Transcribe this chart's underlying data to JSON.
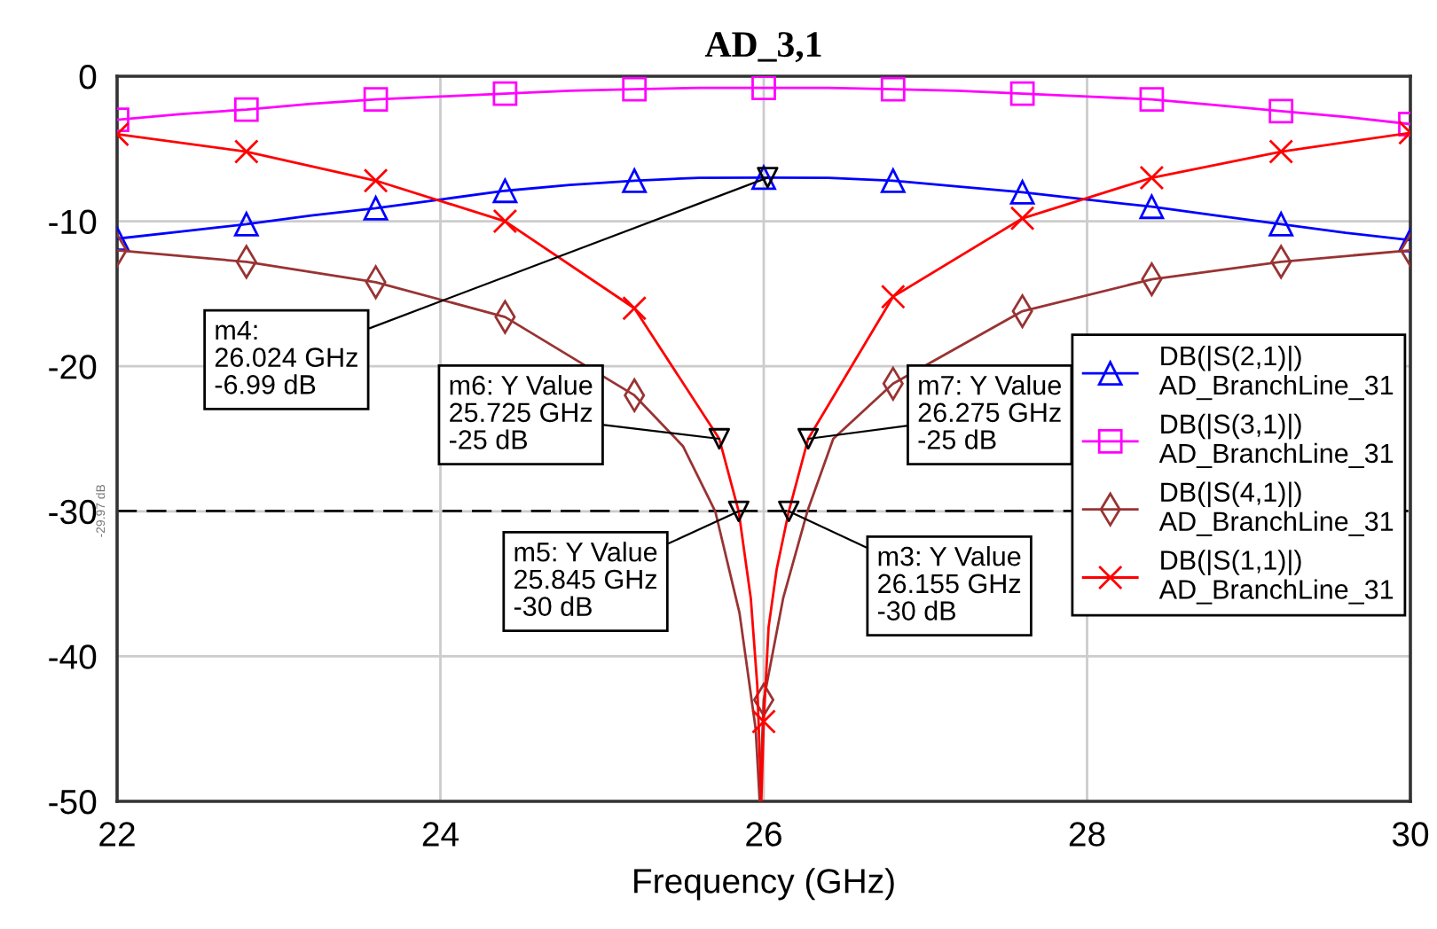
{
  "chart_data": {
    "type": "line",
    "title": "AD_3,1",
    "xlabel": "Frequency (GHz)",
    "xlim": [
      22,
      30
    ],
    "xticks": [
      22,
      24,
      26,
      28,
      30
    ],
    "ylim": [
      -50,
      0
    ],
    "yticks": [
      -50,
      -40,
      -30,
      -20,
      -10,
      0
    ],
    "grid": true,
    "legend": "right",
    "series": [
      {
        "name": "DB(|S(2,1)|)\nAD_BranchLine_31",
        "color": "#0000ff",
        "marker": "triangle",
        "x": [
          22,
          22.4,
          22.8,
          23.2,
          23.6,
          24.0,
          24.4,
          24.8,
          25.2,
          25.6,
          26.0,
          26.4,
          26.8,
          27.2,
          27.6,
          28.0,
          28.4,
          28.8,
          29.2,
          29.6,
          30
        ],
        "values": [
          -11.2,
          -10.7,
          -10.2,
          -9.6,
          -9.1,
          -8.5,
          -7.9,
          -7.5,
          -7.2,
          -7.0,
          -6.99,
          -7.0,
          -7.2,
          -7.6,
          -8.0,
          -8.5,
          -9.0,
          -9.6,
          -10.2,
          -10.8,
          -11.3
        ]
      },
      {
        "name": "DB(|S(3,1)|)\nAD_BranchLine_31",
        "color": "#ff00ff",
        "marker": "square",
        "x": [
          22,
          22.4,
          22.8,
          23.2,
          23.6,
          24.0,
          24.4,
          24.8,
          25.2,
          25.6,
          26.0,
          26.4,
          26.8,
          27.2,
          27.6,
          28.0,
          28.4,
          28.8,
          29.2,
          29.6,
          30
        ],
        "values": [
          -3.0,
          -2.6,
          -2.3,
          -1.9,
          -1.6,
          -1.4,
          -1.2,
          -1.0,
          -0.9,
          -0.8,
          -0.8,
          -0.8,
          -0.9,
          -1.0,
          -1.2,
          -1.4,
          -1.6,
          -2.0,
          -2.4,
          -2.8,
          -3.3
        ]
      },
      {
        "name": "DB(|S(4,1)|)\nAD_BranchLine_31",
        "color": "#993333",
        "marker": "diamond",
        "x": [
          22,
          22.8,
          23.6,
          24.4,
          25.2,
          25.5,
          25.7,
          25.85,
          25.95,
          25.975,
          26.0,
          26.12,
          26.27,
          26.43,
          26.8,
          27.6,
          28.4,
          29.2,
          30
        ],
        "values": [
          -12.0,
          -12.8,
          -14.2,
          -16.6,
          -22.0,
          -25.5,
          -30.0,
          -37.0,
          -45.0,
          -50.0,
          -43.0,
          -36.0,
          -30.0,
          -25.0,
          -21.2,
          -16.2,
          -14.0,
          -12.8,
          -12.0
        ]
      },
      {
        "name": "DB(|S(1,1)|)\nAD_BranchLine_31",
        "color": "#ff0000",
        "marker": "cross",
        "x": [
          22,
          22.8,
          23.6,
          24.4,
          25.2,
          25.725,
          25.845,
          25.92,
          25.96,
          25.985,
          26.0,
          26.03,
          26.08,
          26.155,
          26.275,
          26.8,
          27.6,
          28.4,
          29.2,
          30
        ],
        "values": [
          -4.0,
          -5.2,
          -7.2,
          -10.0,
          -16.0,
          -25.0,
          -30.0,
          -36.0,
          -42.0,
          -50.0,
          -44.5,
          -38.0,
          -34.0,
          -30.0,
          -25.0,
          -15.2,
          -9.8,
          -7.0,
          -5.2,
          -3.9
        ]
      },
      {
        "type": "scatter",
        "color": "#000000",
        "marker": "triangle_down",
        "x": [
          26.024,
          25.725,
          26.275,
          25.845,
          26.155
        ],
        "values": [
          -6.99,
          -25,
          -25,
          -30,
          -30
        ]
      }
    ],
    "ref_lines": [
      {
        "axis": "y",
        "value": -29.97,
        "label": "-29.97 dB",
        "color": "#000000",
        "line_style": "dashed"
      }
    ],
    "annotations": [
      {
        "text": "m4:\n26.024 GHz\n-6.99 dB",
        "x": 26.024,
        "y": -6.99
      },
      {
        "text": "m6: Y Value\n25.725 GHz\n-25 dB",
        "x": 25.725,
        "y": -25
      },
      {
        "text": "m7: Y Value\n26.275 GHz\n-25 dB",
        "x": 26.275,
        "y": -25
      },
      {
        "text": "m5: Y Value\n25.845 GHz\n-30 dB",
        "x": 25.845,
        "y": -30
      },
      {
        "text": "m3: Y Value\n26.155 GHz\n-30 dB",
        "x": 26.155,
        "y": -30
      }
    ]
  }
}
